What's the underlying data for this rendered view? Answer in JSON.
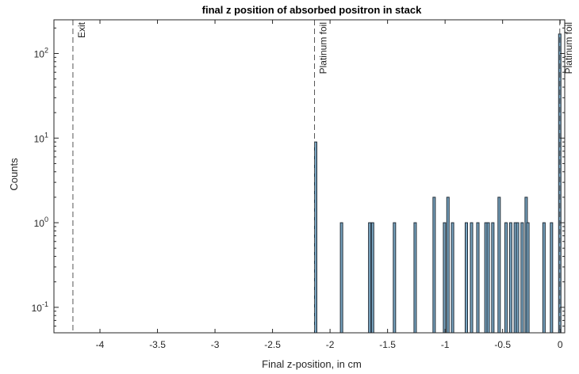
{
  "chart_data": {
    "type": "bar",
    "title": "final z position of absorbed positron in stack",
    "xlabel": "Final z-position, in cm",
    "ylabel": "Counts",
    "xlim": [
      -4.4,
      0.04
    ],
    "ylim": [
      0.05,
      250
    ],
    "yscale": "log",
    "grid": false,
    "legend": "none",
    "colors": {
      "bar_fill": "#7aa6c2",
      "bar_edge": "#1f2b36",
      "axis": "#262626",
      "dashed_line": "#555555"
    },
    "x_ticks": [
      {
        "value": -4,
        "label": "-4"
      },
      {
        "value": -3.5,
        "label": "-3.5"
      },
      {
        "value": -3,
        "label": "-3"
      },
      {
        "value": -2.5,
        "label": "-2.5"
      },
      {
        "value": -2,
        "label": "-2"
      },
      {
        "value": -1.5,
        "label": "-1.5"
      },
      {
        "value": -1,
        "label": "-1"
      },
      {
        "value": -0.5,
        "label": "-0.5"
      },
      {
        "value": 0,
        "label": "0"
      }
    ],
    "y_ticks": [
      {
        "value": 0.1,
        "base": "10",
        "exp": "-1"
      },
      {
        "value": 1,
        "base": "10",
        "exp": "0"
      },
      {
        "value": 10,
        "base": "10",
        "exp": "1"
      },
      {
        "value": 100,
        "base": "10",
        "exp": "2"
      }
    ],
    "bin_width": 0.012,
    "bars": [
      {
        "x": -2.125,
        "count": 9
      },
      {
        "x": -1.9,
        "count": 1
      },
      {
        "x": -1.655,
        "count": 1
      },
      {
        "x": -1.63,
        "count": 1
      },
      {
        "x": -1.44,
        "count": 1
      },
      {
        "x": -1.26,
        "count": 1
      },
      {
        "x": -1.095,
        "count": 2
      },
      {
        "x": -1.005,
        "count": 1
      },
      {
        "x": -0.975,
        "count": 2
      },
      {
        "x": -0.935,
        "count": 1
      },
      {
        "x": -0.815,
        "count": 1
      },
      {
        "x": -0.77,
        "count": 1
      },
      {
        "x": -0.715,
        "count": 1
      },
      {
        "x": -0.645,
        "count": 1
      },
      {
        "x": -0.625,
        "count": 1
      },
      {
        "x": -0.585,
        "count": 1
      },
      {
        "x": -0.53,
        "count": 2
      },
      {
        "x": -0.47,
        "count": 1
      },
      {
        "x": -0.43,
        "count": 1
      },
      {
        "x": -0.39,
        "count": 1
      },
      {
        "x": -0.37,
        "count": 1
      },
      {
        "x": -0.33,
        "count": 1
      },
      {
        "x": -0.295,
        "count": 2
      },
      {
        "x": -0.28,
        "count": 1
      },
      {
        "x": -0.14,
        "count": 1
      },
      {
        "x": -0.075,
        "count": 1
      },
      {
        "x": -0.003,
        "count": 170
      }
    ],
    "reference_lines": [
      {
        "x": -4.235,
        "label": "Exit"
      },
      {
        "x": -2.135,
        "label": "Platinum foil"
      },
      {
        "x": -0.003,
        "label": "Platinum foil"
      }
    ]
  }
}
